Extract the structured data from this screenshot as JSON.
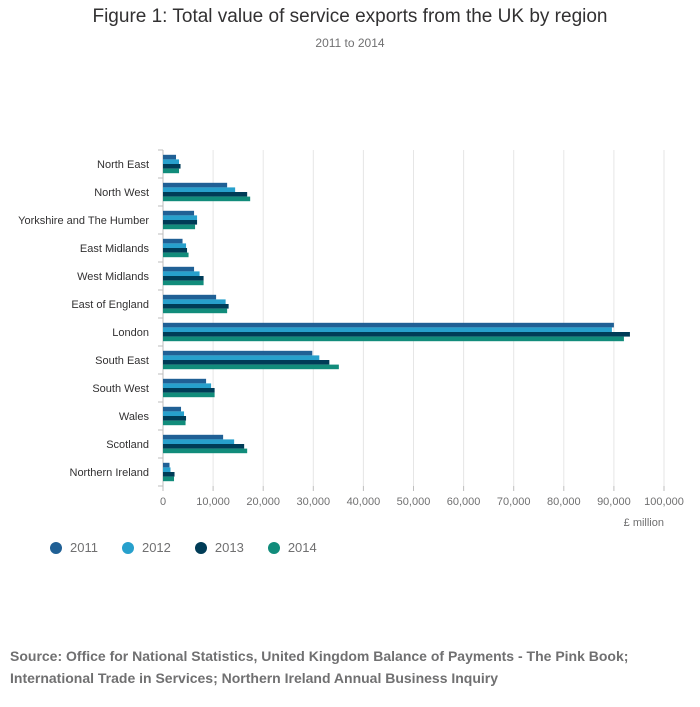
{
  "chart_data": {
    "type": "bar",
    "orientation": "horizontal",
    "title": "Figure 1: Total value of service exports from the UK by region",
    "subtitle": "2011 to 2014",
    "xlabel": "£ million",
    "ylabel": "",
    "xlim": [
      0,
      100000
    ],
    "xticks": [
      0,
      10000,
      20000,
      30000,
      40000,
      50000,
      60000,
      70000,
      80000,
      90000,
      100000
    ],
    "xtick_labels": [
      "0",
      "10,000",
      "20,000",
      "30,000",
      "40,000",
      "50,000",
      "60,000",
      "70,000",
      "80,000",
      "90,000",
      "100,000"
    ],
    "grid": true,
    "legend_position": "bottom-left",
    "categories": [
      "North East",
      "North West",
      "Yorkshire and The Humber",
      "East Midlands",
      "West Midlands",
      "East of England",
      "London",
      "South East",
      "South West",
      "Wales",
      "Scotland",
      "Northern Ireland"
    ],
    "series": [
      {
        "name": "2011",
        "color": "#206095",
        "values": [
          2600,
          12800,
          6200,
          3900,
          6200,
          10600,
          90000,
          29800,
          8600,
          3600,
          12000,
          1300
        ]
      },
      {
        "name": "2012",
        "color": "#27a0cc",
        "values": [
          3200,
          14400,
          6800,
          4600,
          7300,
          12500,
          89600,
          31200,
          9600,
          4200,
          14200,
          1500
        ]
      },
      {
        "name": "2013",
        "color": "#003c57",
        "values": [
          3500,
          16800,
          6800,
          4800,
          8100,
          13100,
          93200,
          33200,
          10300,
          4600,
          16200,
          2300
        ]
      },
      {
        "name": "2014",
        "color": "#118c7b",
        "values": [
          3200,
          17400,
          6400,
          5100,
          8100,
          12800,
          92000,
          35100,
          10300,
          4500,
          16800,
          2200
        ]
      }
    ]
  },
  "source": "Source: Office for National Statistics, United Kingdom Balance of Payments - The Pink Book; International Trade in Services; Northern Ireland Annual Business Inquiry"
}
